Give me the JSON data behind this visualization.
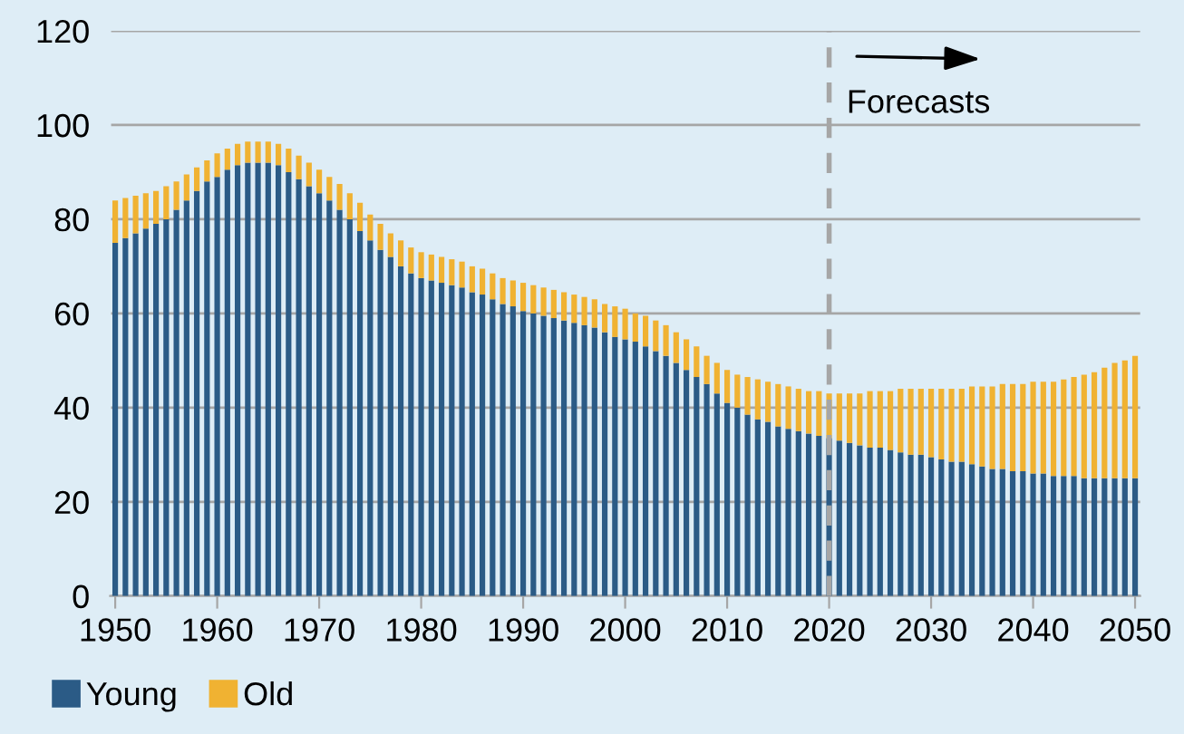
{
  "chart_data": {
    "type": "bar",
    "stacked": true,
    "x": [
      1950,
      1951,
      1952,
      1953,
      1954,
      1955,
      1956,
      1957,
      1958,
      1959,
      1960,
      1961,
      1962,
      1963,
      1964,
      1965,
      1966,
      1967,
      1968,
      1969,
      1970,
      1971,
      1972,
      1973,
      1974,
      1975,
      1976,
      1977,
      1978,
      1979,
      1980,
      1981,
      1982,
      1983,
      1984,
      1985,
      1986,
      1987,
      1988,
      1989,
      1990,
      1991,
      1992,
      1993,
      1994,
      1995,
      1996,
      1997,
      1998,
      1999,
      2000,
      2001,
      2002,
      2003,
      2004,
      2005,
      2006,
      2007,
      2008,
      2009,
      2010,
      2011,
      2012,
      2013,
      2014,
      2015,
      2016,
      2017,
      2018,
      2019,
      2020,
      2021,
      2022,
      2023,
      2024,
      2025,
      2026,
      2027,
      2028,
      2029,
      2030,
      2031,
      2032,
      2033,
      2034,
      2035,
      2036,
      2037,
      2038,
      2039,
      2040,
      2041,
      2042,
      2043,
      2044,
      2045,
      2046,
      2047,
      2048,
      2049,
      2050
    ],
    "series": [
      {
        "name": "Young",
        "color": "#2b5b86",
        "values": [
          75,
          76,
          77,
          78,
          79,
          80,
          82,
          84,
          86,
          88,
          89,
          90.5,
          91.5,
          92,
          92,
          92,
          91.5,
          90,
          88.5,
          87,
          85.5,
          84,
          82,
          80,
          77.5,
          75.5,
          73.5,
          72,
          70,
          68.5,
          67.5,
          67,
          66.5,
          66,
          65.5,
          64.5,
          64,
          63,
          62,
          61.5,
          60.5,
          60,
          59.5,
          59,
          58.5,
          58,
          57.5,
          57,
          56,
          55,
          54.5,
          54,
          53,
          52,
          51,
          49.5,
          48,
          46.5,
          45,
          43,
          41,
          40,
          38.5,
          37.5,
          37,
          36,
          35.5,
          35,
          34.5,
          34,
          33.5,
          33,
          32.5,
          32,
          31.5,
          31.5,
          31,
          30.5,
          30,
          30,
          29.5,
          29,
          28.5,
          28.5,
          28,
          27.5,
          27,
          27,
          26.5,
          26.5,
          26,
          26,
          25.5,
          25.5,
          25.5,
          25,
          25,
          25,
          25,
          25,
          25
        ]
      },
      {
        "name": "Old",
        "color": "#f0b232",
        "values": [
          9,
          8.5,
          8,
          7.5,
          7,
          7,
          6,
          5.5,
          5,
          4.5,
          5,
          4.5,
          4.5,
          4.5,
          4.5,
          4.5,
          4.5,
          5,
          5,
          5,
          5,
          5,
          5.5,
          5.5,
          6,
          5.5,
          5.5,
          5,
          5.5,
          5.5,
          5.5,
          5.5,
          5.5,
          5.5,
          5.5,
          5.5,
          5.5,
          5.5,
          5.5,
          5.5,
          6,
          6,
          6,
          6,
          6,
          6,
          6,
          6,
          6,
          6.5,
          6.5,
          6,
          6.5,
          6.5,
          6.5,
          6.5,
          6.5,
          6.5,
          6,
          6.5,
          7,
          7,
          8,
          8.5,
          8.5,
          9,
          9,
          9,
          9,
          9.5,
          9.5,
          10,
          10.5,
          11,
          12,
          12,
          12.5,
          13.5,
          14,
          14,
          14.5,
          15,
          15.5,
          15.5,
          16.5,
          17,
          17.5,
          18,
          18.5,
          18.5,
          19.5,
          19.5,
          20,
          20.5,
          21,
          22,
          22.5,
          23.5,
          24.5,
          25,
          26
        ]
      }
    ],
    "xlim": [
      1949.5,
      2050.5
    ],
    "xticks": [
      1950,
      1960,
      1970,
      1980,
      1990,
      2000,
      2010,
      2020,
      2030,
      2040,
      2050
    ],
    "ylim": [
      0,
      120
    ],
    "yticks": [
      0,
      20,
      40,
      60,
      80,
      100,
      120
    ],
    "grid": "y",
    "legend": "bottom left",
    "ref_lines": [
      {
        "axis": "x",
        "value": 2020,
        "color": "#a6a6a6",
        "line_style": "dashed"
      }
    ],
    "annotations": [
      "Forecasts"
    ]
  }
}
